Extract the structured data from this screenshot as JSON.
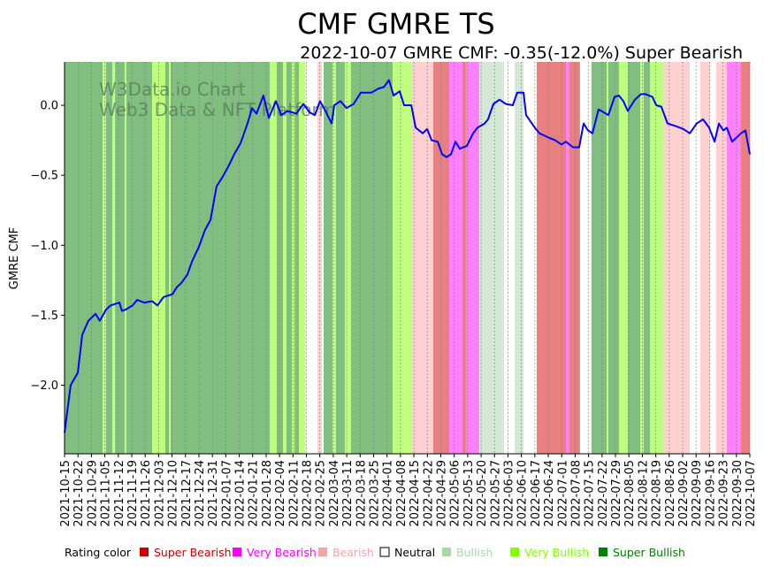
{
  "chart_data": {
    "type": "line",
    "title": "CMF GMRE TS",
    "subtitle": "2022-10-07 GMRE CMF: -0.35(-12.0%) Super Bearish",
    "xlabel": "",
    "ylabel": "GMRE CMF",
    "ylim": [
      -2.49,
      0.31
    ],
    "x_start_date": "2021-10-15",
    "x_range_days": [
      0,
      357
    ],
    "yticks": [
      0.0,
      -0.5,
      -1.0,
      -1.5,
      -2.0
    ],
    "ytick_labels": [
      "0.0",
      "−0.5",
      "−1.0",
      "−1.5",
      "−2.0"
    ],
    "xtick_labels": [
      "2021-10-15",
      "2021-10-22",
      "2021-10-29",
      "2021-11-05",
      "2021-11-12",
      "2021-11-19",
      "2021-11-26",
      "2021-12-03",
      "2021-12-10",
      "2021-12-17",
      "2021-12-24",
      "2021-12-31",
      "2022-01-07",
      "2022-01-14",
      "2022-01-21",
      "2022-01-28",
      "2022-02-04",
      "2022-02-11",
      "2022-02-18",
      "2022-02-25",
      "2022-03-04",
      "2022-03-11",
      "2022-03-18",
      "2022-03-25",
      "2022-04-01",
      "2022-04-08",
      "2022-04-15",
      "2022-04-22",
      "2022-04-29",
      "2022-05-06",
      "2022-05-13",
      "2022-05-20",
      "2022-05-27",
      "2022-06-03",
      "2022-06-10",
      "2022-06-17",
      "2022-06-24",
      "2022-07-01",
      "2022-07-08",
      "2022-07-15",
      "2022-07-22",
      "2022-07-29",
      "2022-08-05",
      "2022-08-12",
      "2022-08-19",
      "2022-08-26",
      "2022-09-02",
      "2022-09-09",
      "2022-09-16",
      "2022-09-23",
      "2022-09-30",
      "2022-10-07"
    ],
    "series": [
      {
        "name": "GMRE CMF",
        "color": "#0000ff",
        "points_day_value": [
          [
            0,
            -2.34
          ],
          [
            3.2,
            -2.0
          ],
          [
            6.9,
            -1.91
          ],
          [
            9.2,
            -1.64
          ],
          [
            12.4,
            -1.54
          ],
          [
            16.1,
            -1.49
          ],
          [
            18.4,
            -1.54
          ],
          [
            21.6,
            -1.46
          ],
          [
            24,
            -1.43
          ],
          [
            28.6,
            -1.41
          ],
          [
            29.9,
            -1.47
          ],
          [
            31.8,
            -1.46
          ],
          [
            35.5,
            -1.43
          ],
          [
            37.8,
            -1.39
          ],
          [
            41.5,
            -1.41
          ],
          [
            45.6,
            -1.4
          ],
          [
            48.4,
            -1.43
          ],
          [
            51.6,
            -1.37
          ],
          [
            56.2,
            -1.35
          ],
          [
            58.5,
            -1.3
          ],
          [
            60.8,
            -1.27
          ],
          [
            64,
            -1.21
          ],
          [
            66.3,
            -1.12
          ],
          [
            70,
            -1.01
          ],
          [
            73.2,
            -0.89
          ],
          [
            76,
            -0.82
          ],
          [
            79.2,
            -0.58
          ],
          [
            82.4,
            -0.51
          ],
          [
            85.2,
            -0.44
          ],
          [
            88.4,
            -0.35
          ],
          [
            91.7,
            -0.27
          ],
          [
            95.3,
            -0.13
          ],
          [
            97.7,
            -0.02
          ],
          [
            100,
            -0.06
          ],
          [
            103.6,
            0.07
          ],
          [
            106.4,
            -0.09
          ],
          [
            110.1,
            0.03
          ],
          [
            112.9,
            -0.07
          ],
          [
            116.1,
            -0.04
          ],
          [
            120.7,
            -0.06
          ],
          [
            124.4,
            0.01
          ],
          [
            127.6,
            -0.05
          ],
          [
            130.4,
            -0.07
          ],
          [
            133.1,
            0.03
          ],
          [
            135.9,
            -0.04
          ],
          [
            139.1,
            -0.13
          ],
          [
            140.5,
            0.0
          ],
          [
            143.7,
            0.03
          ],
          [
            146.9,
            -0.02
          ],
          [
            150.6,
            0.01
          ],
          [
            154.3,
            0.09
          ],
          [
            159.8,
            0.09
          ],
          [
            163.5,
            0.12
          ],
          [
            166.3,
            0.13
          ],
          [
            169,
            0.18
          ],
          [
            171.4,
            0.07
          ],
          [
            174.6,
            0.1
          ],
          [
            176.9,
            0.0
          ],
          [
            180.6,
            0.0
          ],
          [
            182.9,
            -0.16
          ],
          [
            186.6,
            -0.2
          ],
          [
            188.9,
            -0.17
          ],
          [
            191.2,
            -0.25
          ],
          [
            194.4,
            -0.26
          ],
          [
            196.7,
            -0.35
          ],
          [
            199,
            -0.37
          ],
          [
            201.3,
            -0.35
          ],
          [
            203.6,
            -0.26
          ],
          [
            205.9,
            -0.31
          ],
          [
            209.6,
            -0.29
          ],
          [
            212.8,
            -0.2
          ],
          [
            215.1,
            -0.16
          ],
          [
            218.8,
            -0.13
          ],
          [
            220.6,
            -0.1
          ],
          [
            223.4,
            0.01
          ],
          [
            226.6,
            0.04
          ],
          [
            229.9,
            0.01
          ],
          [
            233.5,
            0.0
          ],
          [
            235.8,
            0.09
          ],
          [
            239.1,
            0.09
          ],
          [
            240.4,
            -0.07
          ],
          [
            245,
            -0.16
          ],
          [
            247.4,
            -0.2
          ],
          [
            252,
            -0.23
          ],
          [
            255.6,
            -0.25
          ],
          [
            258.9,
            -0.28
          ],
          [
            261.2,
            -0.26
          ],
          [
            264.9,
            -0.3
          ],
          [
            268.1,
            -0.3
          ],
          [
            270.4,
            -0.13
          ],
          [
            272.7,
            -0.18
          ],
          [
            275,
            -0.2
          ],
          [
            278.2,
            -0.03
          ],
          [
            279.6,
            -0.04
          ],
          [
            283.3,
            -0.07
          ],
          [
            286.5,
            0.06
          ],
          [
            288.8,
            0.07
          ],
          [
            291.1,
            0.03
          ],
          [
            293.4,
            -0.04
          ],
          [
            297.1,
            0.04
          ],
          [
            300.3,
            0.08
          ],
          [
            302.6,
            0.08
          ],
          [
            306.3,
            0.06
          ],
          [
            308.2,
            0.0
          ],
          [
            310.9,
            -0.01
          ],
          [
            314.1,
            -0.13
          ],
          [
            318.7,
            -0.15
          ],
          [
            322.4,
            -0.17
          ],
          [
            325.7,
            -0.2
          ],
          [
            329.3,
            -0.13
          ],
          [
            332.6,
            -0.1
          ],
          [
            335.8,
            -0.16
          ],
          [
            338.6,
            -0.26
          ],
          [
            340.9,
            -0.13
          ],
          [
            343.2,
            -0.18
          ],
          [
            345,
            -0.16
          ],
          [
            347.8,
            -0.26
          ],
          [
            352.4,
            -0.2
          ],
          [
            354.7,
            -0.18
          ],
          [
            357,
            -0.35
          ]
        ]
      }
    ],
    "rating_bands_days": [
      [
        0,
        19.8,
        "SBU"
      ],
      [
        19.8,
        21.6,
        "VBU"
      ],
      [
        21.6,
        24.9,
        "SBU"
      ],
      [
        24.9,
        26.3,
        "VBU"
      ],
      [
        26.3,
        31.3,
        "SBU"
      ],
      [
        31.3,
        32.2,
        "VBU"
      ],
      [
        32.2,
        45.6,
        "SBU"
      ],
      [
        45.6,
        52.5,
        "VBU"
      ],
      [
        52.5,
        54.4,
        "SBU"
      ],
      [
        54.4,
        55.3,
        "VBU"
      ],
      [
        55.3,
        106.9,
        "SBU"
      ],
      [
        106.9,
        110.5,
        "VBU"
      ],
      [
        110.5,
        113.8,
        "SBU"
      ],
      [
        113.8,
        115.6,
        "VBU"
      ],
      [
        115.6,
        118.4,
        "SBU"
      ],
      [
        118.4,
        119.8,
        "VBU"
      ],
      [
        119.8,
        122.1,
        "SBU"
      ],
      [
        122.1,
        125.3,
        "VBU"
      ],
      [
        125.3,
        131.7,
        "N"
      ],
      [
        131.7,
        134,
        "BE"
      ],
      [
        134,
        135,
        "N"
      ],
      [
        135,
        139.6,
        "SBU"
      ],
      [
        139.6,
        141.4,
        "VBU"
      ],
      [
        141.4,
        146,
        "SBU"
      ],
      [
        146,
        149.2,
        "VBU"
      ],
      [
        149.2,
        170.9,
        "SBU"
      ],
      [
        170.9,
        180.6,
        "VBU"
      ],
      [
        180.6,
        192.1,
        "BE"
      ],
      [
        192.1,
        200.4,
        "SBE"
      ],
      [
        200.4,
        207.3,
        "VBE"
      ],
      [
        207.3,
        209.1,
        "SBE"
      ],
      [
        209.1,
        216,
        "VBE"
      ],
      [
        216,
        228.9,
        "BU"
      ],
      [
        228.9,
        234.5,
        "N"
      ],
      [
        234.5,
        239.1,
        "BU"
      ],
      [
        239.1,
        246,
        "N"
      ],
      [
        246,
        261.2,
        "SBE"
      ],
      [
        261.2,
        263,
        "VBE"
      ],
      [
        263,
        268.5,
        "SBE"
      ],
      [
        268.5,
        274.5,
        "N"
      ],
      [
        274.5,
        282.4,
        "SBU"
      ],
      [
        282.4,
        283.3,
        "VBU"
      ],
      [
        283.3,
        288.8,
        "SBU"
      ],
      [
        288.8,
        293.4,
        "VBU"
      ],
      [
        293.4,
        299.9,
        "SBU"
      ],
      [
        299.9,
        301.7,
        "VBU"
      ],
      [
        301.7,
        305,
        "SBU"
      ],
      [
        305,
        312.1,
        "VBU"
      ],
      [
        312.1,
        325.7,
        "BE"
      ],
      [
        325.7,
        331.2,
        "N"
      ],
      [
        331.2,
        336.3,
        "BE"
      ],
      [
        336.3,
        339.5,
        "N"
      ],
      [
        339.5,
        345,
        "BE"
      ],
      [
        345,
        352.4,
        "VBE"
      ],
      [
        352.4,
        357,
        "SBE"
      ]
    ],
    "band_colors": {
      "SBE": "#e88080",
      "VBE": "#ff80ff",
      "BE": "#ffd0d0",
      "N": "#ffffff",
      "BU": "#d5e8d5",
      "VBU": "#bfff80",
      "SBU": "#80bf80"
    },
    "legend": {
      "title": "Rating color",
      "items": [
        {
          "label": "Super Bearish",
          "color": "#cc0000"
        },
        {
          "label": "Very Bearish",
          "color": "#ff00ff"
        },
        {
          "label": "Bearish",
          "color": "#f4a6a6"
        },
        {
          "label": "Neutral",
          "color": "#ffffff"
        },
        {
          "label": "Bullish",
          "color": "#a8d8a8"
        },
        {
          "label": "Very Bullish",
          "color": "#80ff00"
        },
        {
          "label": "Super Bullish",
          "color": "#008000"
        }
      ]
    },
    "watermark": [
      "W3Data.io Chart",
      "Web3 Data & NFT Platform"
    ]
  }
}
